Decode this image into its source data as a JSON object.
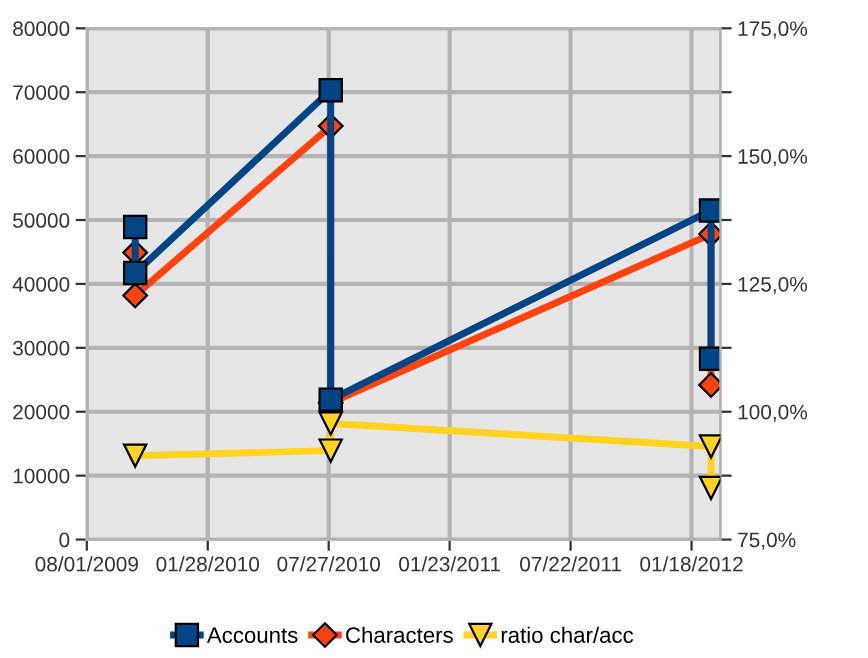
{
  "chart_data": {
    "type": "line",
    "x": [
      "2009-10-12",
      "2009-10-12",
      "2010-07-30",
      "2010-07-30",
      "2012-02-16",
      "2012-02-16"
    ],
    "series": [
      {
        "name": "Accounts",
        "color": "#004586",
        "marker": "square",
        "values": [
          48900,
          41700,
          70300,
          21900,
          51500,
          28300
        ]
      },
      {
        "name": "Characters",
        "color": "#ff420e",
        "marker": "diamond",
        "values": [
          44900,
          38200,
          64700,
          21400,
          47800,
          24200
        ]
      },
      {
        "name": "ratio char/acc",
        "color": "#ffd320",
        "marker": "triangle",
        "axis": "y2",
        "values": [
          null,
          91.4,
          92.4,
          97.7,
          93.2,
          85.1
        ]
      }
    ],
    "xlim": [
      "2009-08-01",
      "2012-03-01"
    ],
    "xticks": [
      {
        "value": "2009-08-01",
        "label": "08/01/2009"
      },
      {
        "value": "2010-01-28",
        "label": "01/28/2010"
      },
      {
        "value": "2010-07-27",
        "label": "07/27/2010"
      },
      {
        "value": "2011-01-23",
        "label": "01/23/2011"
      },
      {
        "value": "2011-07-22",
        "label": "07/22/2011"
      },
      {
        "value": "2012-01-18",
        "label": "01/18/2012"
      }
    ],
    "ylim": [
      0,
      80000
    ],
    "yticks": [
      0,
      10000,
      20000,
      30000,
      40000,
      50000,
      60000,
      70000,
      80000
    ],
    "y2lim": [
      75,
      175
    ],
    "y2ticks": [
      {
        "value": 75,
        "label": "75,0%"
      },
      {
        "value": 87.5,
        "label": null
      },
      {
        "value": 100,
        "label": "100,0%"
      },
      {
        "value": 112.5,
        "label": null
      },
      {
        "value": 125,
        "label": "125,0%"
      },
      {
        "value": 137.5,
        "label": null
      },
      {
        "value": 150,
        "label": "150,0%"
      },
      {
        "value": 162.5,
        "label": null
      },
      {
        "value": 175,
        "label": "175,0%"
      }
    ],
    "grid": true,
    "legend": "bottom"
  }
}
